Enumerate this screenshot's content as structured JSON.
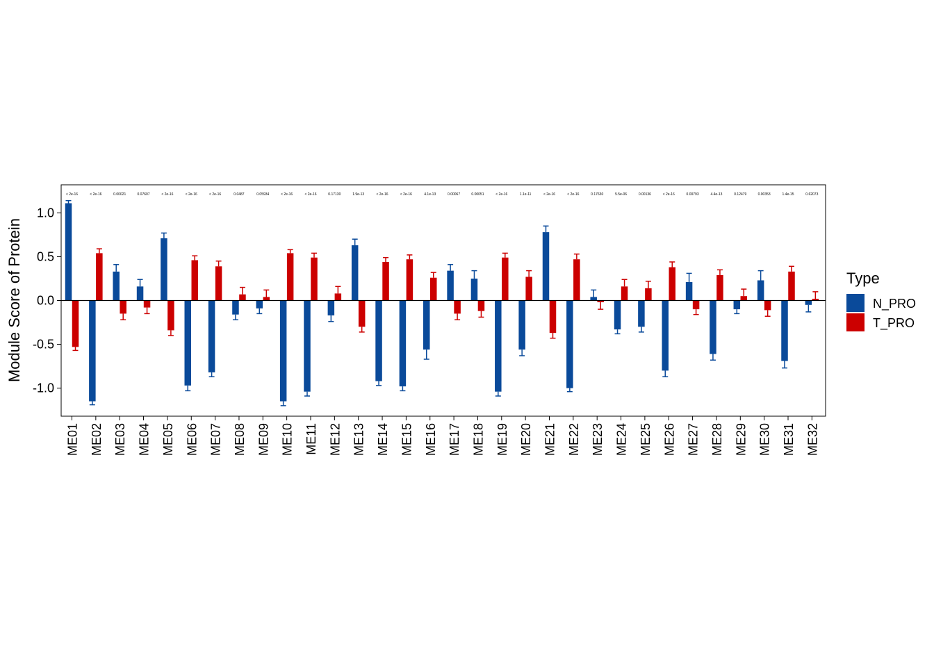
{
  "chart_data": {
    "type": "bar",
    "ylabel": "Module Score of Protein",
    "xlabel": "",
    "ylim": [
      -1.32,
      1.32
    ],
    "yticks": [
      -1.0,
      -0.5,
      0.0,
      0.5,
      1.0
    ],
    "ytick_labels": [
      "-1.0",
      "-0.5",
      "0.0",
      "0.5",
      "1.0"
    ],
    "grid": false,
    "legend_position": "right",
    "legend_title": "Type",
    "colors": {
      "N_PRO": "#0a4a9a",
      "T_PRO": "#cc0000"
    },
    "categories": [
      "ME01",
      "ME02",
      "ME03",
      "ME04",
      "ME05",
      "ME06",
      "ME07",
      "ME08",
      "ME09",
      "ME10",
      "ME11",
      "ME12",
      "ME13",
      "ME14",
      "ME15",
      "ME16",
      "ME17",
      "ME18",
      "ME19",
      "ME20",
      "ME21",
      "ME22",
      "ME23",
      "ME24",
      "ME25",
      "ME26",
      "ME27",
      "ME28",
      "ME29",
      "ME30",
      "ME31",
      "ME32"
    ],
    "series": [
      {
        "name": "N_PRO",
        "values": [
          1.11,
          -1.15,
          0.33,
          0.16,
          0.71,
          -0.97,
          -0.82,
          -0.16,
          -0.09,
          -1.15,
          -1.04,
          -0.17,
          0.63,
          -0.92,
          -0.98,
          -0.56,
          0.34,
          0.25,
          -1.04,
          -0.56,
          0.78,
          -1.0,
          0.04,
          -0.33,
          -0.3,
          -0.8,
          0.21,
          -0.61,
          -0.1,
          0.23,
          -0.69,
          -0.05
        ],
        "errors": [
          0.03,
          0.04,
          0.08,
          0.08,
          0.06,
          0.06,
          0.05,
          0.06,
          0.06,
          0.05,
          0.05,
          0.07,
          0.07,
          0.05,
          0.05,
          0.11,
          0.07,
          0.09,
          0.05,
          0.07,
          0.07,
          0.04,
          0.08,
          0.05,
          0.06,
          0.07,
          0.1,
          0.07,
          0.05,
          0.11,
          0.08,
          0.08
        ]
      },
      {
        "name": "T_PRO",
        "values": [
          -0.53,
          0.54,
          -0.15,
          -0.08,
          -0.34,
          0.46,
          0.39,
          0.07,
          0.04,
          0.54,
          0.49,
          0.08,
          -0.3,
          0.44,
          0.47,
          0.26,
          -0.15,
          -0.12,
          0.49,
          0.27,
          -0.37,
          0.47,
          -0.02,
          0.16,
          0.14,
          0.38,
          -0.1,
          0.29,
          0.05,
          -0.11,
          0.33,
          0.02
        ],
        "errors": [
          0.04,
          0.05,
          0.07,
          0.07,
          0.06,
          0.05,
          0.06,
          0.08,
          0.08,
          0.04,
          0.05,
          0.08,
          0.06,
          0.05,
          0.05,
          0.06,
          0.07,
          0.07,
          0.05,
          0.07,
          0.06,
          0.06,
          0.08,
          0.08,
          0.08,
          0.06,
          0.06,
          0.06,
          0.08,
          0.07,
          0.06,
          0.08
        ]
      }
    ],
    "pvalues": [
      "< 2e-16",
      "< 2e-16",
      "0.00021",
      "0.07607",
      "< 2e-16",
      "< 2e-16",
      "< 2e-16",
      "0.0487",
      "0.05934",
      "< 2e-16",
      "< 2e-16",
      "0.17130",
      "1.9e-13",
      "< 2e-16",
      "< 2e-16",
      "4.1e-13",
      "0.00067",
      "0.00051",
      "< 2e-16",
      "1.1e-11",
      "< 2e-16",
      "< 2e-16",
      "0.17630",
      "5.5e-06",
      "0.00136",
      "< 2e-16",
      "0.00793",
      "4.4e-13",
      "0.12479",
      "0.00353",
      "1.4e-15",
      "0.62073"
    ]
  }
}
